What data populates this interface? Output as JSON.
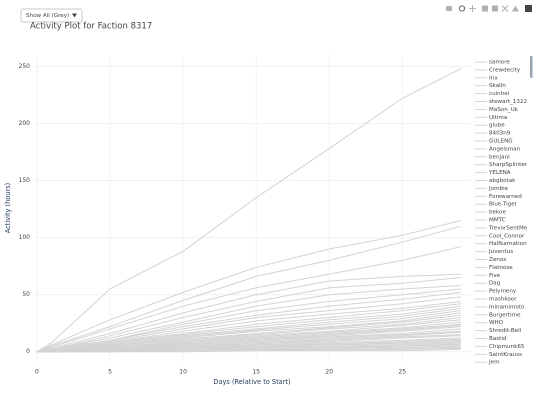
{
  "dropdown_label": "Show All (Grey)",
  "chart_data": {
    "type": "line",
    "title": "Activity Plot for Faction 8317",
    "x_label": "Days (Relative to Start)",
    "y_label": "Activity (hours)",
    "line_color": "#d3d3d3",
    "grid": true,
    "xlim": [
      -0.2,
      29.7
    ],
    "ylim": [
      -9,
      260
    ],
    "xticks": [
      0,
      5,
      10,
      15,
      20,
      25
    ],
    "yticks": [
      0,
      50,
      100,
      150,
      200,
      250
    ],
    "x": [
      0,
      1,
      5,
      10,
      15,
      20,
      25,
      29
    ],
    "series": [
      {
        "name": "samore",
        "values": [
          0,
          8,
          55,
          88,
          135,
          178,
          222,
          248
        ]
      },
      {
        "name": "Crewdecity",
        "values": [
          0,
          6,
          28,
          52,
          74,
          90,
          102,
          115
        ]
      },
      {
        "name": "Irix",
        "values": [
          0,
          5,
          22,
          45,
          66,
          80,
          96,
          110
        ]
      },
      {
        "name": "Skalln",
        "values": [
          0,
          4,
          20,
          40,
          56,
          68,
          80,
          92
        ]
      },
      {
        "name": "cuinhei",
        "values": [
          0,
          3,
          16,
          34,
          50,
          62,
          66,
          68
        ]
      },
      {
        "name": "stewart_1322",
        "values": [
          0,
          2,
          14,
          30,
          44,
          56,
          60,
          65
        ]
      },
      {
        "name": "MaSon_Uk",
        "values": [
          0,
          2,
          12,
          26,
          40,
          50,
          55,
          58
        ]
      },
      {
        "name": "Ultima",
        "values": [
          0,
          2,
          10,
          24,
          36,
          44,
          50,
          55
        ]
      },
      {
        "name": "glube",
        "values": [
          0,
          2,
          10,
          22,
          32,
          40,
          46,
          52
        ]
      },
      {
        "name": "8403n9",
        "values": [
          0,
          1,
          9,
          20,
          30,
          36,
          42,
          48
        ]
      },
      {
        "name": "GULENG",
        "values": [
          0,
          1,
          8,
          18,
          27,
          33,
          38,
          44
        ]
      },
      {
        "name": "Angelsman",
        "values": [
          0,
          1,
          8,
          16,
          24,
          30,
          36,
          42
        ]
      },
      {
        "name": "benjani",
        "values": [
          0,
          1,
          7,
          15,
          22,
          28,
          33,
          40
        ]
      },
      {
        "name": "SharpSplinter",
        "values": [
          0,
          1,
          6,
          14,
          20,
          26,
          31,
          38
        ]
      },
      {
        "name": "YELENA",
        "values": [
          0,
          1,
          6,
          13,
          19,
          24,
          29,
          36
        ]
      },
      {
        "name": "abgbotak",
        "values": [
          0,
          1,
          5,
          12,
          18,
          22,
          27,
          34
        ]
      },
      {
        "name": "Jombie",
        "values": [
          0,
          1,
          5,
          11,
          16,
          21,
          26,
          32
        ]
      },
      {
        "name": "Forewarned",
        "values": [
          0,
          1,
          5,
          10,
          15,
          20,
          24,
          30
        ]
      },
      {
        "name": "Blue-Tiger",
        "values": [
          0,
          1,
          4,
          9,
          14,
          18,
          23,
          28
        ]
      },
      {
        "name": "bekoe",
        "values": [
          0,
          1,
          4,
          9,
          13,
          17,
          21,
          26
        ]
      },
      {
        "name": "MMTC",
        "values": [
          0,
          0,
          4,
          8,
          12,
          16,
          20,
          24
        ]
      },
      {
        "name": "TrevorSentMe",
        "values": [
          0,
          0,
          3,
          8,
          11,
          15,
          19,
          23
        ]
      },
      {
        "name": "Cool_Connor",
        "values": [
          0,
          0,
          3,
          7,
          10,
          14,
          18,
          22
        ]
      },
      {
        "name": "Halfkarnation",
        "values": [
          0,
          0,
          3,
          6,
          10,
          13,
          16,
          20
        ]
      },
      {
        "name": "Juventus",
        "values": [
          0,
          0,
          3,
          6,
          9,
          12,
          15,
          18
        ]
      },
      {
        "name": "Zenox",
        "values": [
          0,
          0,
          2,
          5,
          8,
          11,
          14,
          17
        ]
      },
      {
        "name": "Flatnose",
        "values": [
          0,
          0,
          2,
          5,
          7,
          10,
          13,
          15
        ]
      },
      {
        "name": "Five",
        "values": [
          0,
          0,
          2,
          4,
          7,
          9,
          12,
          14
        ]
      },
      {
        "name": "Dag",
        "values": [
          0,
          0,
          2,
          4,
          6,
          8,
          10,
          12
        ]
      },
      {
        "name": "Pelymeny",
        "values": [
          0,
          0,
          2,
          3,
          5,
          7,
          9,
          11
        ]
      },
      {
        "name": "mashkoor",
        "values": [
          0,
          0,
          1,
          3,
          5,
          6,
          8,
          10
        ]
      },
      {
        "name": "minamimoto",
        "values": [
          0,
          0,
          1,
          3,
          4,
          6,
          7,
          9
        ]
      },
      {
        "name": "Burgertime",
        "values": [
          0,
          0,
          1,
          2,
          4,
          5,
          6,
          8
        ]
      },
      {
        "name": "WHO",
        "values": [
          0,
          0,
          1,
          2,
          3,
          4,
          5,
          7
        ]
      },
      {
        "name": "Shredit-Bell",
        "values": [
          0,
          0,
          1,
          2,
          3,
          4,
          5,
          6
        ]
      },
      {
        "name": "Bastid",
        "values": [
          0,
          0,
          1,
          1,
          2,
          3,
          4,
          5
        ]
      },
      {
        "name": "Chipmunk65",
        "values": [
          0,
          0,
          0,
          1,
          2,
          2,
          3,
          4
        ]
      },
      {
        "name": "SaintKrauss",
        "values": [
          0,
          0,
          0,
          1,
          1,
          2,
          2,
          3
        ]
      },
      {
        "name": "Jem",
        "values": [
          0,
          0,
          0,
          0,
          1,
          1,
          1,
          2
        ]
      }
    ]
  }
}
